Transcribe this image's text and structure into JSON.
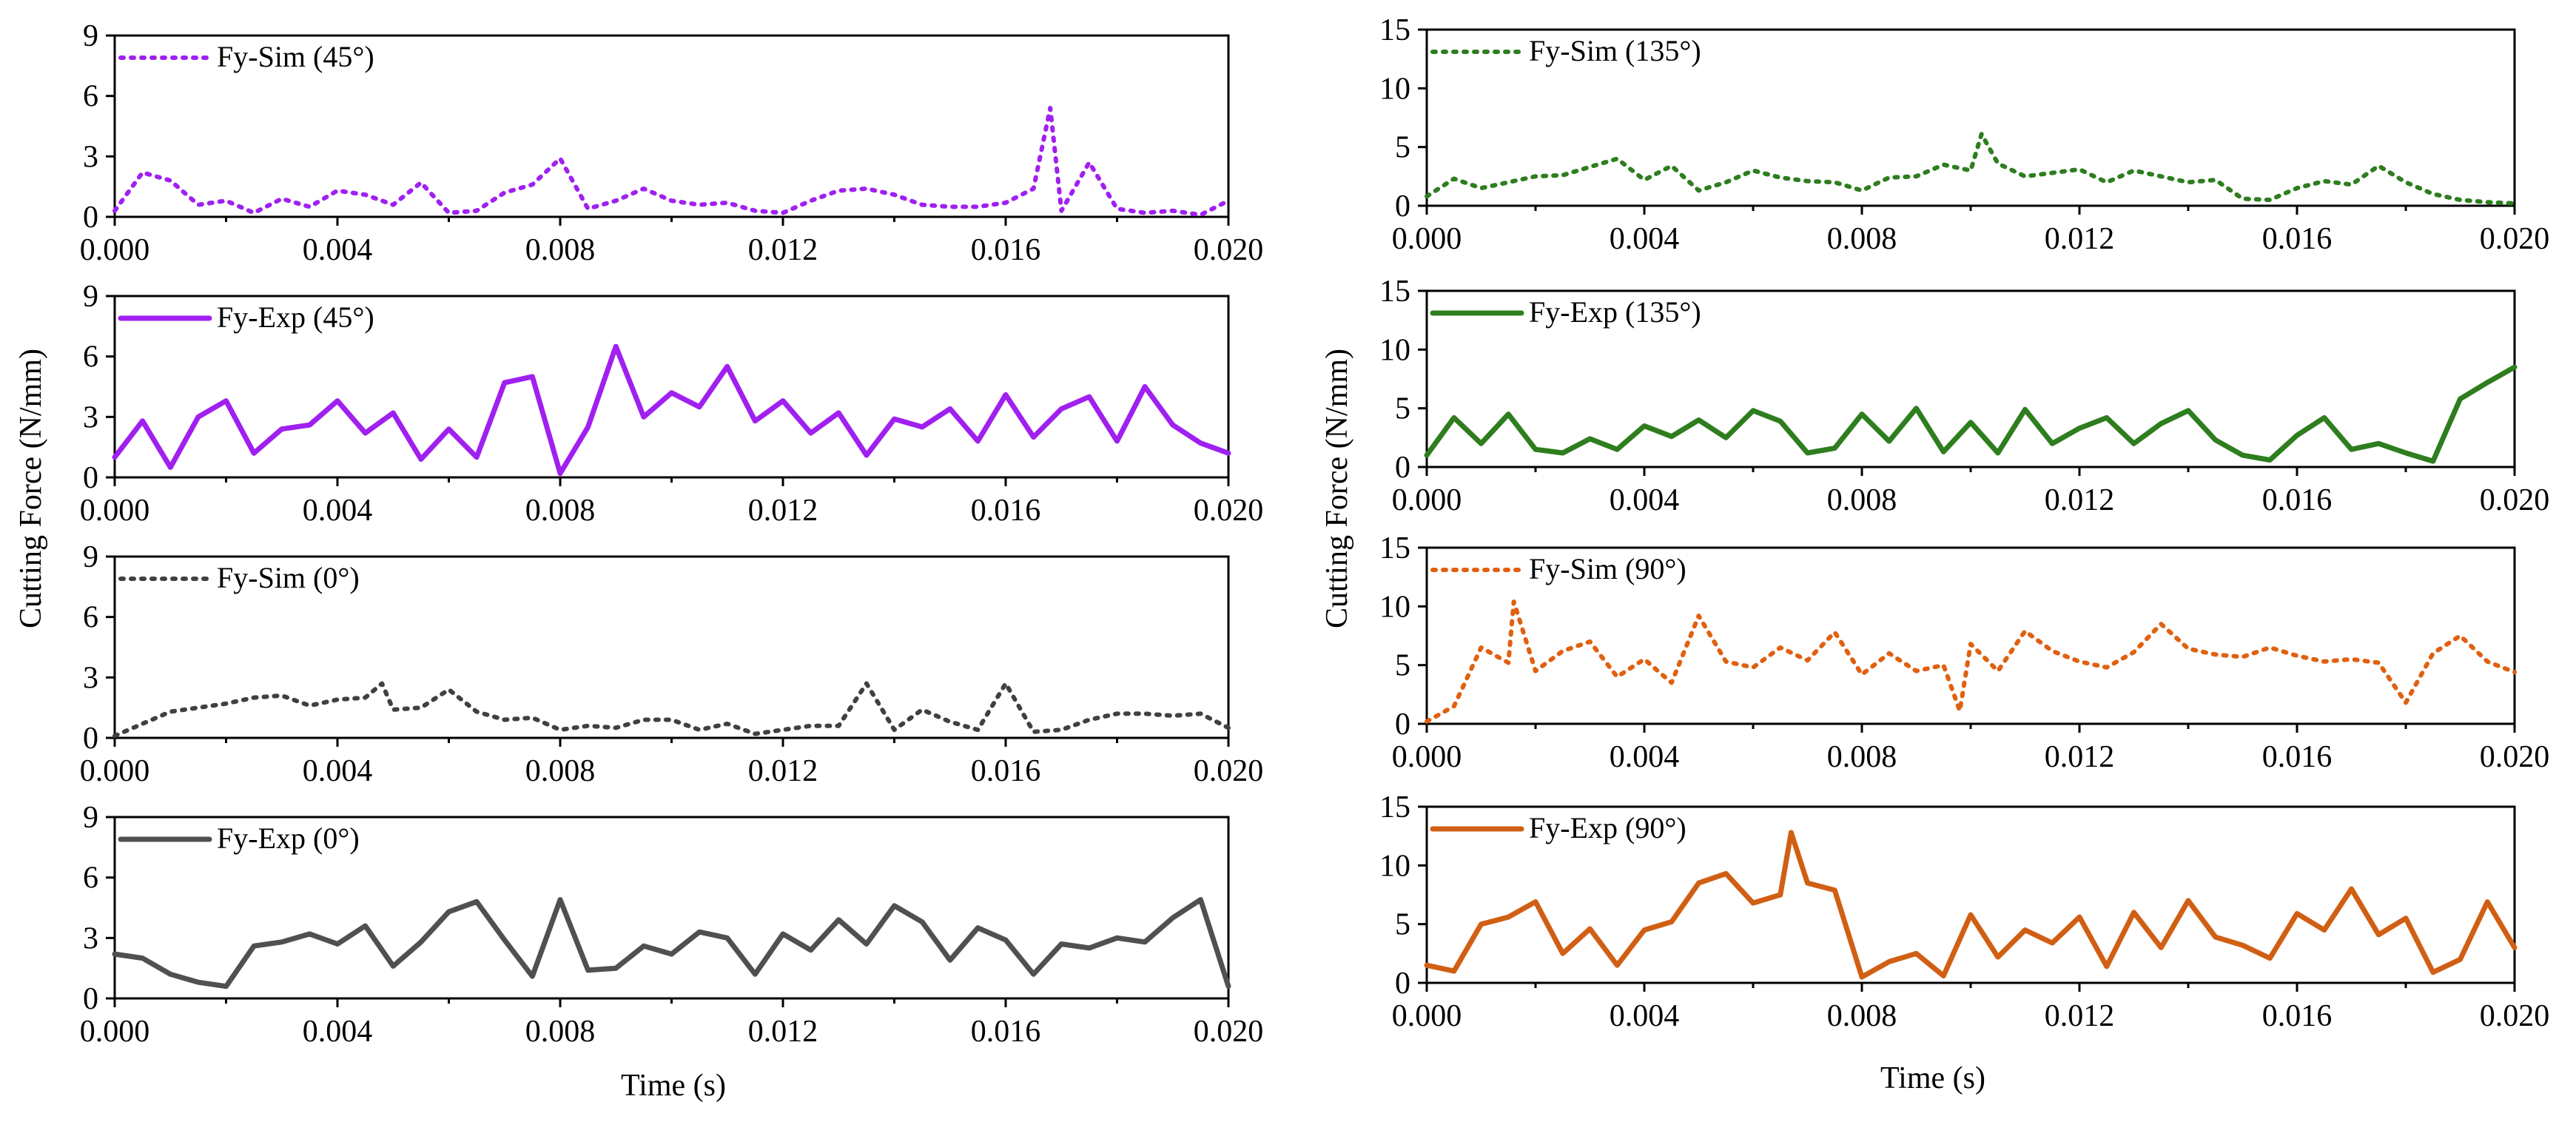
{
  "figure": {
    "shared_ylabel_left": "Cutting Force (N/mm)",
    "shared_ylabel_right": "Cutting Force (N/mm)",
    "xlabel_left": "Time (s)",
    "xlabel_right": "Time (s)"
  },
  "chart_data": [
    {
      "id": "L1",
      "type": "line",
      "title": "",
      "column": "left",
      "legend": "Fy-Sim (45°)",
      "color": "#A020F0",
      "linestyle": "dotted",
      "xlim": [
        0,
        0.02
      ],
      "ylim": [
        0,
        9
      ],
      "xticks": [
        "0.000",
        "0.004",
        "0.008",
        "0.012",
        "0.016",
        "0.020"
      ],
      "yticks": [
        "0",
        "3",
        "6",
        "9"
      ],
      "x": [
        0,
        0.0005,
        0.001,
        0.0015,
        0.002,
        0.0025,
        0.003,
        0.0035,
        0.004,
        0.0045,
        0.005,
        0.0055,
        0.006,
        0.0065,
        0.007,
        0.0075,
        0.008,
        0.0085,
        0.009,
        0.0095,
        0.01,
        0.0105,
        0.011,
        0.0115,
        0.012,
        0.0125,
        0.013,
        0.0135,
        0.014,
        0.0145,
        0.015,
        0.0155,
        0.016,
        0.0165,
        0.0168,
        0.017,
        0.0175,
        0.018,
        0.0185,
        0.019,
        0.0195,
        0.02
      ],
      "y": [
        0.3,
        2.2,
        1.8,
        0.6,
        0.8,
        0.2,
        0.9,
        0.5,
        1.3,
        1.1,
        0.6,
        1.7,
        0.2,
        0.3,
        1.2,
        1.6,
        2.9,
        0.4,
        0.8,
        1.4,
        0.8,
        0.6,
        0.7,
        0.3,
        0.2,
        0.8,
        1.3,
        1.4,
        1.1,
        0.6,
        0.5,
        0.5,
        0.7,
        1.4,
        5.4,
        0.3,
        2.7,
        0.4,
        0.2,
        0.3,
        0.1,
        0.8
      ]
    },
    {
      "id": "L2",
      "type": "line",
      "title": "",
      "column": "left",
      "legend": "Fy-Exp (45°)",
      "color": "#A020F0",
      "linestyle": "solid",
      "xlim": [
        0,
        0.02
      ],
      "ylim": [
        0,
        9
      ],
      "xticks": [
        "0.000",
        "0.004",
        "0.008",
        "0.012",
        "0.016",
        "0.020"
      ],
      "yticks": [
        "0",
        "3",
        "6",
        "9"
      ],
      "x": [
        0,
        0.0005,
        0.001,
        0.0015,
        0.002,
        0.0025,
        0.003,
        0.0035,
        0.004,
        0.0045,
        0.005,
        0.0055,
        0.006,
        0.0065,
        0.007,
        0.0075,
        0.008,
        0.0085,
        0.009,
        0.0095,
        0.01,
        0.0105,
        0.011,
        0.0115,
        0.012,
        0.0125,
        0.013,
        0.0135,
        0.014,
        0.0145,
        0.015,
        0.0155,
        0.016,
        0.0165,
        0.017,
        0.0175,
        0.018,
        0.0185,
        0.019,
        0.0195,
        0.02
      ],
      "y": [
        1.0,
        2.8,
        0.5,
        3.0,
        3.8,
        1.2,
        2.4,
        2.6,
        3.8,
        2.2,
        3.2,
        0.9,
        2.4,
        1.0,
        4.7,
        5.0,
        0.2,
        2.5,
        6.5,
        3.0,
        4.2,
        3.5,
        5.5,
        2.8,
        3.8,
        2.2,
        3.2,
        1.1,
        2.9,
        2.5,
        3.4,
        1.8,
        4.1,
        2.0,
        3.4,
        4.0,
        1.8,
        4.5,
        2.6,
        1.7,
        1.2
      ]
    },
    {
      "id": "L3",
      "type": "line",
      "title": "",
      "column": "left",
      "legend": "Fy-Sim (0°)",
      "color": "#404040",
      "linestyle": "dotted",
      "xlim": [
        0,
        0.02
      ],
      "ylim": [
        0,
        9
      ],
      "xticks": [
        "0.000",
        "0.004",
        "0.008",
        "0.012",
        "0.016",
        "0.020"
      ],
      "yticks": [
        "0",
        "3",
        "6",
        "9"
      ],
      "x": [
        0,
        0.0005,
        0.001,
        0.0015,
        0.002,
        0.0025,
        0.003,
        0.0035,
        0.004,
        0.0045,
        0.0048,
        0.005,
        0.0055,
        0.006,
        0.0065,
        0.007,
        0.0075,
        0.008,
        0.0085,
        0.009,
        0.0095,
        0.01,
        0.0105,
        0.011,
        0.0115,
        0.012,
        0.0125,
        0.013,
        0.0135,
        0.014,
        0.0145,
        0.015,
        0.0155,
        0.016,
        0.0165,
        0.017,
        0.0175,
        0.018,
        0.0185,
        0.019,
        0.0195,
        0.02
      ],
      "y": [
        0.1,
        0.7,
        1.3,
        1.5,
        1.7,
        2.0,
        2.1,
        1.6,
        1.9,
        2.0,
        2.7,
        1.4,
        1.5,
        2.4,
        1.3,
        0.9,
        1.0,
        0.4,
        0.6,
        0.5,
        0.9,
        0.9,
        0.4,
        0.7,
        0.2,
        0.4,
        0.6,
        0.6,
        2.7,
        0.4,
        1.4,
        0.8,
        0.4,
        2.7,
        0.3,
        0.4,
        0.9,
        1.2,
        1.2,
        1.1,
        1.2,
        0.5
      ]
    },
    {
      "id": "L4",
      "type": "line",
      "title": "",
      "column": "left",
      "legend": "Fy-Exp (0°)",
      "color": "#505050",
      "linestyle": "solid",
      "xlim": [
        0,
        0.02
      ],
      "ylim": [
        0,
        9
      ],
      "xticks": [
        "0.000",
        "0.004",
        "0.008",
        "0.012",
        "0.016",
        "0.020"
      ],
      "yticks": [
        "0",
        "3",
        "6",
        "9"
      ],
      "x": [
        0,
        0.0005,
        0.001,
        0.0015,
        0.002,
        0.0025,
        0.003,
        0.0035,
        0.004,
        0.0045,
        0.005,
        0.0055,
        0.006,
        0.0065,
        0.007,
        0.0075,
        0.008,
        0.0085,
        0.009,
        0.0095,
        0.01,
        0.0105,
        0.011,
        0.0115,
        0.012,
        0.0125,
        0.013,
        0.0135,
        0.014,
        0.0145,
        0.015,
        0.0155,
        0.016,
        0.0165,
        0.017,
        0.0175,
        0.018,
        0.0185,
        0.019,
        0.0195,
        0.02
      ],
      "y": [
        2.2,
        2.0,
        1.2,
        0.8,
        0.6,
        2.6,
        2.8,
        3.2,
        2.7,
        3.6,
        1.6,
        2.8,
        4.3,
        4.8,
        2.9,
        1.1,
        4.9,
        1.4,
        1.5,
        2.6,
        2.2,
        3.3,
        3.0,
        1.2,
        3.2,
        2.4,
        3.9,
        2.7,
        4.6,
        3.8,
        1.9,
        3.5,
        2.9,
        1.2,
        2.7,
        2.5,
        3.0,
        2.8,
        4.0,
        4.9,
        0.6
      ]
    },
    {
      "id": "R1",
      "type": "line",
      "title": "",
      "column": "right",
      "legend": "Fy-Sim (135°)",
      "color": "#2E7D1E",
      "linestyle": "dotted",
      "xlim": [
        0,
        0.02
      ],
      "ylim": [
        0,
        15
      ],
      "xticks": [
        "0.000",
        "0.004",
        "0.008",
        "0.012",
        "0.016",
        "0.020"
      ],
      "yticks": [
        "0",
        "5",
        "10",
        "15"
      ],
      "x": [
        0,
        0.0005,
        0.001,
        0.0015,
        0.002,
        0.0025,
        0.003,
        0.0035,
        0.004,
        0.0045,
        0.005,
        0.0055,
        0.006,
        0.0065,
        0.007,
        0.0075,
        0.008,
        0.0085,
        0.009,
        0.0095,
        0.01,
        0.0102,
        0.0105,
        0.011,
        0.0115,
        0.012,
        0.0125,
        0.013,
        0.0135,
        0.014,
        0.0145,
        0.015,
        0.0155,
        0.016,
        0.0165,
        0.017,
        0.0175,
        0.018,
        0.0185,
        0.019,
        0.0195,
        0.02
      ],
      "y": [
        0.8,
        2.3,
        1.5,
        2.0,
        2.5,
        2.6,
        3.3,
        4.0,
        2.2,
        3.4,
        1.3,
        2.0,
        3.0,
        2.4,
        2.1,
        2.0,
        1.3,
        2.4,
        2.5,
        3.5,
        3.0,
        6.1,
        3.6,
        2.5,
        2.8,
        3.1,
        2.0,
        3.0,
        2.5,
        2.0,
        2.2,
        0.6,
        0.5,
        1.5,
        2.1,
        1.8,
        3.4,
        2.0,
        1.0,
        0.5,
        0.3,
        0.2
      ]
    },
    {
      "id": "R2",
      "type": "line",
      "title": "",
      "column": "right",
      "legend": "Fy-Exp (135°)",
      "color": "#2E7D1E",
      "linestyle": "solid",
      "xlim": [
        0,
        0.02
      ],
      "ylim": [
        0,
        15
      ],
      "xticks": [
        "0.000",
        "0.004",
        "0.008",
        "0.012",
        "0.016",
        "0.020"
      ],
      "yticks": [
        "0",
        "5",
        "10",
        "15"
      ],
      "x": [
        0,
        0.0005,
        0.001,
        0.0015,
        0.002,
        0.0025,
        0.003,
        0.0035,
        0.004,
        0.0045,
        0.005,
        0.0055,
        0.006,
        0.0065,
        0.007,
        0.0075,
        0.008,
        0.0085,
        0.009,
        0.0095,
        0.01,
        0.0105,
        0.011,
        0.0115,
        0.012,
        0.0125,
        0.013,
        0.0135,
        0.014,
        0.0145,
        0.015,
        0.0155,
        0.016,
        0.0165,
        0.017,
        0.0175,
        0.018,
        0.0185,
        0.019,
        0.0195,
        0.02
      ],
      "y": [
        1.0,
        4.2,
        2.0,
        4.5,
        1.5,
        1.2,
        2.4,
        1.5,
        3.5,
        2.6,
        4.0,
        2.5,
        4.8,
        3.9,
        1.2,
        1.6,
        4.5,
        2.2,
        5.0,
        1.3,
        3.8,
        1.2,
        4.9,
        2.0,
        3.3,
        4.2,
        2.0,
        3.7,
        4.8,
        2.3,
        1.0,
        0.6,
        2.7,
        4.2,
        1.5,
        2.0,
        1.2,
        0.5,
        5.8,
        7.2,
        8.5
      ]
    },
    {
      "id": "R3",
      "type": "line",
      "title": "",
      "column": "right",
      "legend": "Fy-Sim (90°)",
      "color": "#E06010",
      "linestyle": "dotted",
      "xlim": [
        0,
        0.02
      ],
      "ylim": [
        0,
        15
      ],
      "xticks": [
        "0.000",
        "0.004",
        "0.008",
        "0.012",
        "0.016",
        "0.020"
      ],
      "yticks": [
        "0",
        "5",
        "10",
        "15"
      ],
      "x": [
        0,
        0.0005,
        0.001,
        0.0015,
        0.0016,
        0.002,
        0.0025,
        0.003,
        0.0035,
        0.004,
        0.0045,
        0.005,
        0.0055,
        0.006,
        0.0065,
        0.007,
        0.0075,
        0.008,
        0.0085,
        0.009,
        0.0095,
        0.0098,
        0.01,
        0.0105,
        0.011,
        0.0115,
        0.012,
        0.0125,
        0.013,
        0.0135,
        0.014,
        0.0145,
        0.015,
        0.0155,
        0.016,
        0.0165,
        0.017,
        0.0175,
        0.018,
        0.0185,
        0.019,
        0.0195,
        0.02
      ],
      "y": [
        0.2,
        1.5,
        6.5,
        5.2,
        10.4,
        4.5,
        6.2,
        7.0,
        4.0,
        5.5,
        3.5,
        9.2,
        5.3,
        4.8,
        6.5,
        5.4,
        7.8,
        4.2,
        6.0,
        4.5,
        5.0,
        1.1,
        6.8,
        4.5,
        7.9,
        6.2,
        5.3,
        4.8,
        6.1,
        8.5,
        6.4,
        5.9,
        5.7,
        6.5,
        5.8,
        5.3,
        5.5,
        5.2,
        1.8,
        6.0,
        7.5,
        5.3,
        4.4
      ]
    },
    {
      "id": "R4",
      "type": "line",
      "title": "",
      "column": "right",
      "legend": "Fy-Exp (90°)",
      "color": "#D05F14",
      "linestyle": "solid",
      "xlim": [
        0,
        0.02
      ],
      "ylim": [
        0,
        15
      ],
      "xticks": [
        "0.000",
        "0.004",
        "0.008",
        "0.012",
        "0.016",
        "0.020"
      ],
      "yticks": [
        "0",
        "5",
        "10",
        "15"
      ],
      "x": [
        0,
        0.0005,
        0.001,
        0.0015,
        0.002,
        0.0025,
        0.003,
        0.0035,
        0.004,
        0.0045,
        0.005,
        0.0055,
        0.006,
        0.0065,
        0.0067,
        0.007,
        0.0075,
        0.008,
        0.0085,
        0.009,
        0.0095,
        0.01,
        0.0105,
        0.011,
        0.0115,
        0.012,
        0.0125,
        0.013,
        0.0135,
        0.014,
        0.0145,
        0.015,
        0.0155,
        0.016,
        0.0165,
        0.017,
        0.0175,
        0.018,
        0.0185,
        0.019,
        0.0195,
        0.02
      ],
      "y": [
        1.5,
        1.0,
        5.0,
        5.6,
        6.9,
        2.5,
        4.6,
        1.5,
        4.5,
        5.2,
        8.5,
        9.3,
        6.8,
        7.5,
        12.8,
        8.5,
        7.9,
        0.5,
        1.8,
        2.5,
        0.6,
        5.8,
        2.2,
        4.5,
        3.4,
        5.6,
        1.4,
        6.0,
        3.0,
        7.0,
        3.9,
        3.2,
        2.1,
        5.9,
        4.5,
        8.0,
        4.1,
        5.5,
        0.9,
        2.0,
        6.9,
        3.0
      ]
    }
  ]
}
